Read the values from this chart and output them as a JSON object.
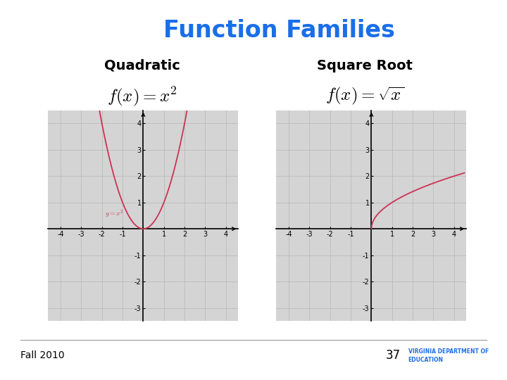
{
  "title": "Function Families",
  "title_color": "#1A6EE8",
  "title_fontsize": 24,
  "subtitle_left": "Quadratic",
  "subtitle_right": "Square Root",
  "subtitle_fontsize": 14,
  "background_color": "#ffffff",
  "graph_bg_color": "#D4D4D4",
  "curve_color": "#CC3355",
  "axis_color": "#000000",
  "grid_color": "#bbbbbb",
  "label_color_quad": "#CC3355",
  "xlim": [
    -4.6,
    4.6
  ],
  "ylim": [
    -3.5,
    4.5
  ],
  "xticks": [
    -4,
    -3,
    -2,
    -1,
    0,
    1,
    2,
    3,
    4
  ],
  "yticks": [
    -3,
    -2,
    -1,
    0,
    1,
    2,
    3,
    4
  ],
  "footer_text": "Fall 2010",
  "page_number": "37",
  "eq_left": "$f(x) = x^2$",
  "eq_right": "$f(x) = \\sqrt{x}$",
  "quad_label": "$y = x^2$"
}
